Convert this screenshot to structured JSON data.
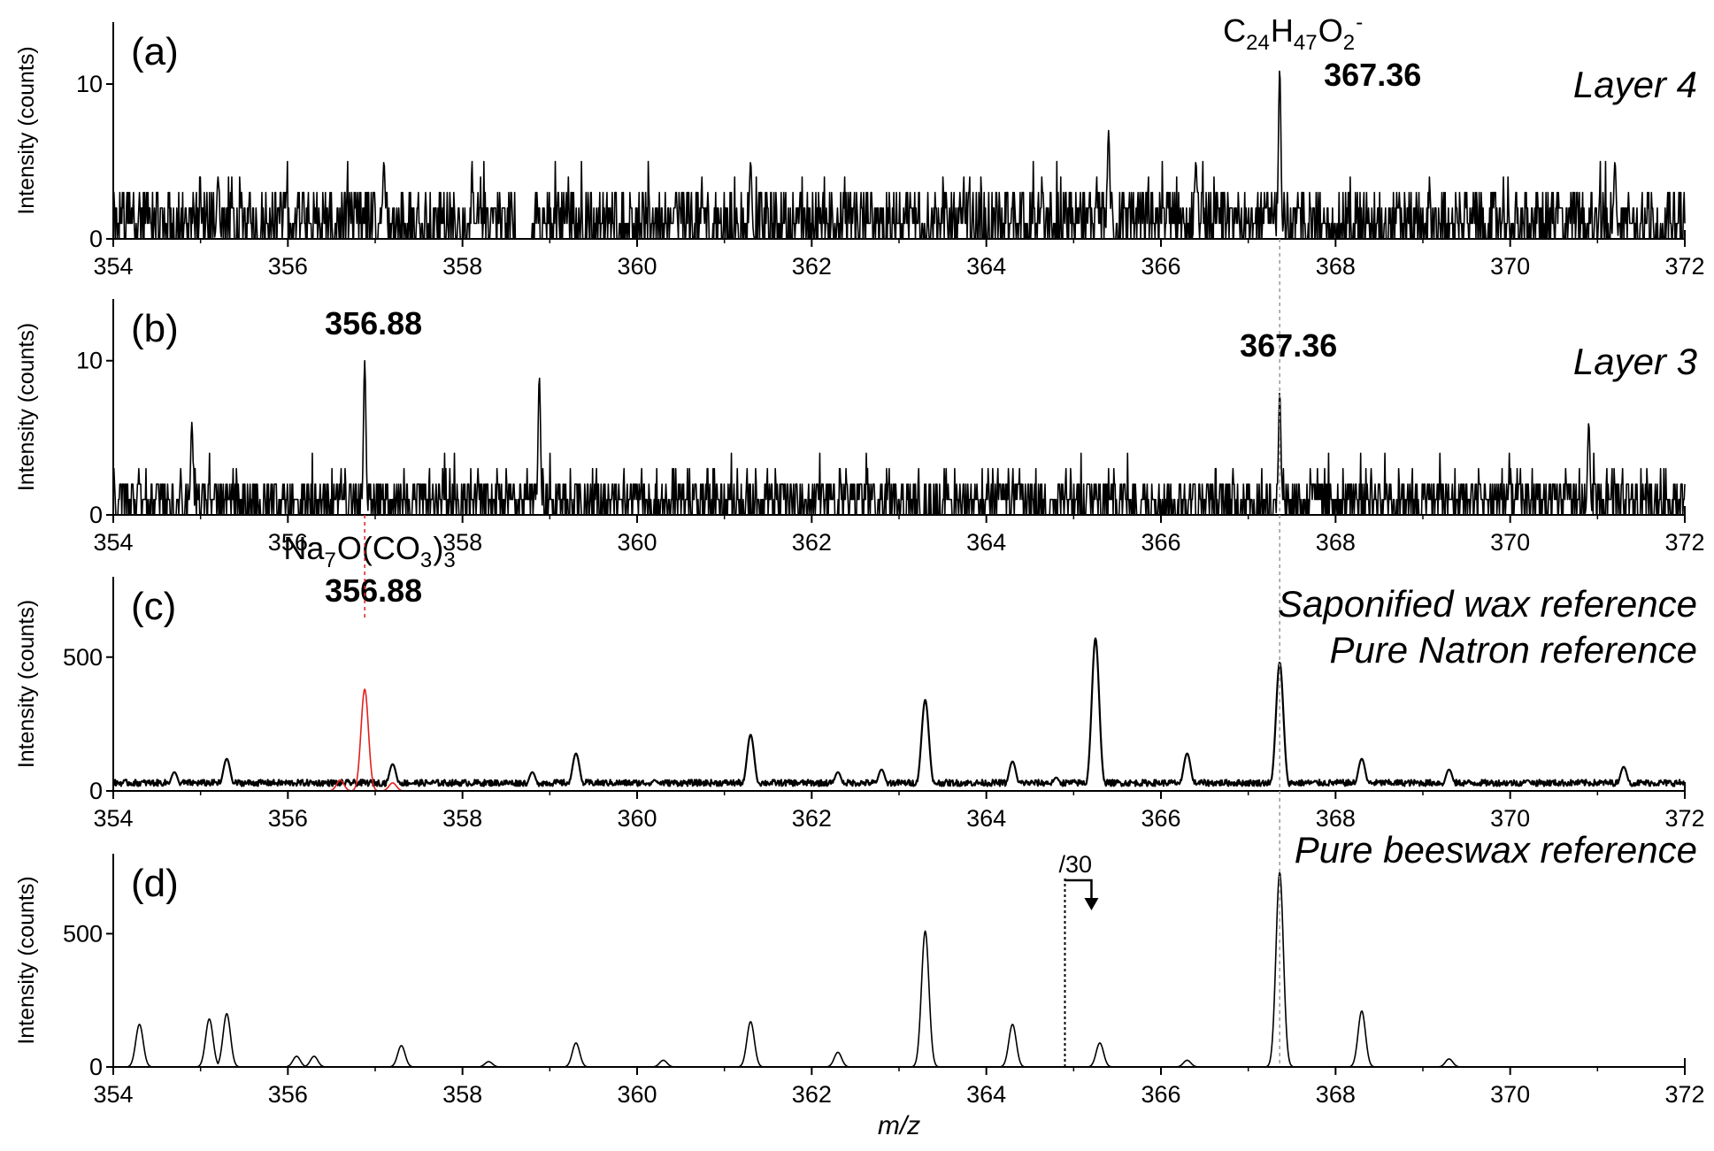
{
  "figure": {
    "xlabel": "m/z",
    "colors": {
      "black": "#000000",
      "red": "#e0201e",
      "guide": "#9a9a9a"
    }
  },
  "chart_data": [
    {
      "type": "line",
      "panel": "(a)",
      "sample_label": "Layer 4",
      "ylabel": "Intensity (counts)",
      "xlim": [
        354,
        372
      ],
      "ylim": [
        0,
        14
      ],
      "x_ticks": [
        354,
        356,
        358,
        360,
        362,
        364,
        366,
        368,
        370,
        372
      ],
      "y_ticks": [
        0,
        10
      ],
      "annotations": [
        {
          "formula": {
            "base": [
              "C",
              "H",
              "O"
            ],
            "sub": [
              "24",
              "47",
              "2"
            ],
            "sup": "-"
          },
          "x": 367.36,
          "value": "367.36"
        }
      ],
      "series": [
        {
          "color": "#000000",
          "noise": {
            "max": 5,
            "gap": [
              358.6,
              358.8
            ]
          },
          "peaks": [
            {
              "x": 367.36,
              "y": 11
            },
            {
              "x": 365.4,
              "y": 7
            },
            {
              "x": 366.4,
              "y": 5
            },
            {
              "x": 361.3,
              "y": 5
            },
            {
              "x": 357.1,
              "y": 5
            },
            {
              "x": 355.2,
              "y": 4
            },
            {
              "x": 371.2,
              "y": 5
            }
          ]
        }
      ]
    },
    {
      "type": "line",
      "panel": "(b)",
      "sample_label": "Layer 3",
      "ylabel": "Intensity (counts)",
      "xlim": [
        354,
        372
      ],
      "ylim": [
        0,
        14
      ],
      "x_ticks": [
        354,
        356,
        358,
        360,
        362,
        364,
        366,
        368,
        370,
        372
      ],
      "y_ticks": [
        0,
        10
      ],
      "annotations": [
        {
          "x": 356.88,
          "value": "356.88"
        },
        {
          "x": 367.36,
          "value": "367.36"
        }
      ],
      "series": [
        {
          "color": "#000000",
          "noise": {
            "max": 4
          },
          "peaks": [
            {
              "x": 356.88,
              "y": 10
            },
            {
              "x": 358.88,
              "y": 9
            },
            {
              "x": 367.36,
              "y": 8
            },
            {
              "x": 354.9,
              "y": 6
            },
            {
              "x": 370.9,
              "y": 6
            }
          ]
        }
      ]
    },
    {
      "type": "line",
      "panel": "(c)",
      "sample_labels": [
        {
          "text": "Saponified wax reference",
          "color": "#000000"
        },
        {
          "text": "Pure Natron reference",
          "color": "#e0201e"
        }
      ],
      "ylabel": "Intensity (counts)",
      "xlim": [
        354,
        372
      ],
      "ylim": [
        0,
        800
      ],
      "x_ticks": [
        354,
        356,
        358,
        360,
        362,
        364,
        366,
        368,
        370,
        372
      ],
      "y_ticks": [
        0,
        500
      ],
      "annotations": [
        {
          "formula": {
            "base": [
              "Na",
              "O(CO",
              ")"
            ],
            "sub": [
              "7",
              "3",
              "3"
            ],
            "sup": "-"
          },
          "x": 356.88,
          "value": "356.88",
          "color": "#e0201e"
        }
      ],
      "series": [
        {
          "name": "Saponified wax reference",
          "color": "#000000",
          "baseline": 30,
          "peaks": [
            {
              "x": 354.7,
              "y": 70
            },
            {
              "x": 355.3,
              "y": 120
            },
            {
              "x": 357.2,
              "y": 100
            },
            {
              "x": 358.8,
              "y": 70
            },
            {
              "x": 359.3,
              "y": 140
            },
            {
              "x": 360.2,
              "y": 40
            },
            {
              "x": 361.3,
              "y": 210
            },
            {
              "x": 362.3,
              "y": 70
            },
            {
              "x": 362.8,
              "y": 80
            },
            {
              "x": 363.3,
              "y": 340
            },
            {
              "x": 364.3,
              "y": 110
            },
            {
              "x": 364.8,
              "y": 50
            },
            {
              "x": 365.25,
              "y": 570
            },
            {
              "x": 366.3,
              "y": 140
            },
            {
              "x": 367.36,
              "y": 480
            },
            {
              "x": 368.3,
              "y": 120
            },
            {
              "x": 369.3,
              "y": 80
            },
            {
              "x": 370.2,
              "y": 40
            },
            {
              "x": 371.3,
              "y": 90
            }
          ]
        },
        {
          "name": "Pure Natron reference",
          "color": "#e0201e",
          "baseline": 0,
          "peaks": [
            {
              "x": 356.88,
              "y": 380
            },
            {
              "x": 356.6,
              "y": 40
            },
            {
              "x": 357.2,
              "y": 30
            }
          ]
        }
      ]
    },
    {
      "type": "line",
      "panel": "(d)",
      "sample_label": "Pure beeswax reference",
      "ylabel": "Intensity (counts)",
      "xlim": [
        354,
        372
      ],
      "ylim": [
        0,
        800
      ],
      "x_ticks": [
        354,
        356,
        358,
        360,
        362,
        364,
        366,
        368,
        370,
        372
      ],
      "y_ticks": [
        0,
        500
      ],
      "scale_marker": {
        "x": 364.9,
        "text": "/30"
      },
      "series": [
        {
          "color": "#000000",
          "baseline": 0,
          "peaks": [
            {
              "x": 354.3,
              "y": 160
            },
            {
              "x": 355.1,
              "y": 180
            },
            {
              "x": 355.3,
              "y": 200
            },
            {
              "x": 356.1,
              "y": 40
            },
            {
              "x": 356.3,
              "y": 40
            },
            {
              "x": 357.3,
              "y": 80
            },
            {
              "x": 358.3,
              "y": 20
            },
            {
              "x": 359.3,
              "y": 90
            },
            {
              "x": 360.3,
              "y": 25
            },
            {
              "x": 361.3,
              "y": 170
            },
            {
              "x": 362.3,
              "y": 55
            },
            {
              "x": 363.3,
              "y": 510
            },
            {
              "x": 364.3,
              "y": 160
            },
            {
              "x": 365.3,
              "y": 90
            },
            {
              "x": 366.3,
              "y": 25
            },
            {
              "x": 367.36,
              "y": 730
            },
            {
              "x": 368.3,
              "y": 210
            },
            {
              "x": 369.3,
              "y": 30
            }
          ]
        }
      ]
    }
  ]
}
